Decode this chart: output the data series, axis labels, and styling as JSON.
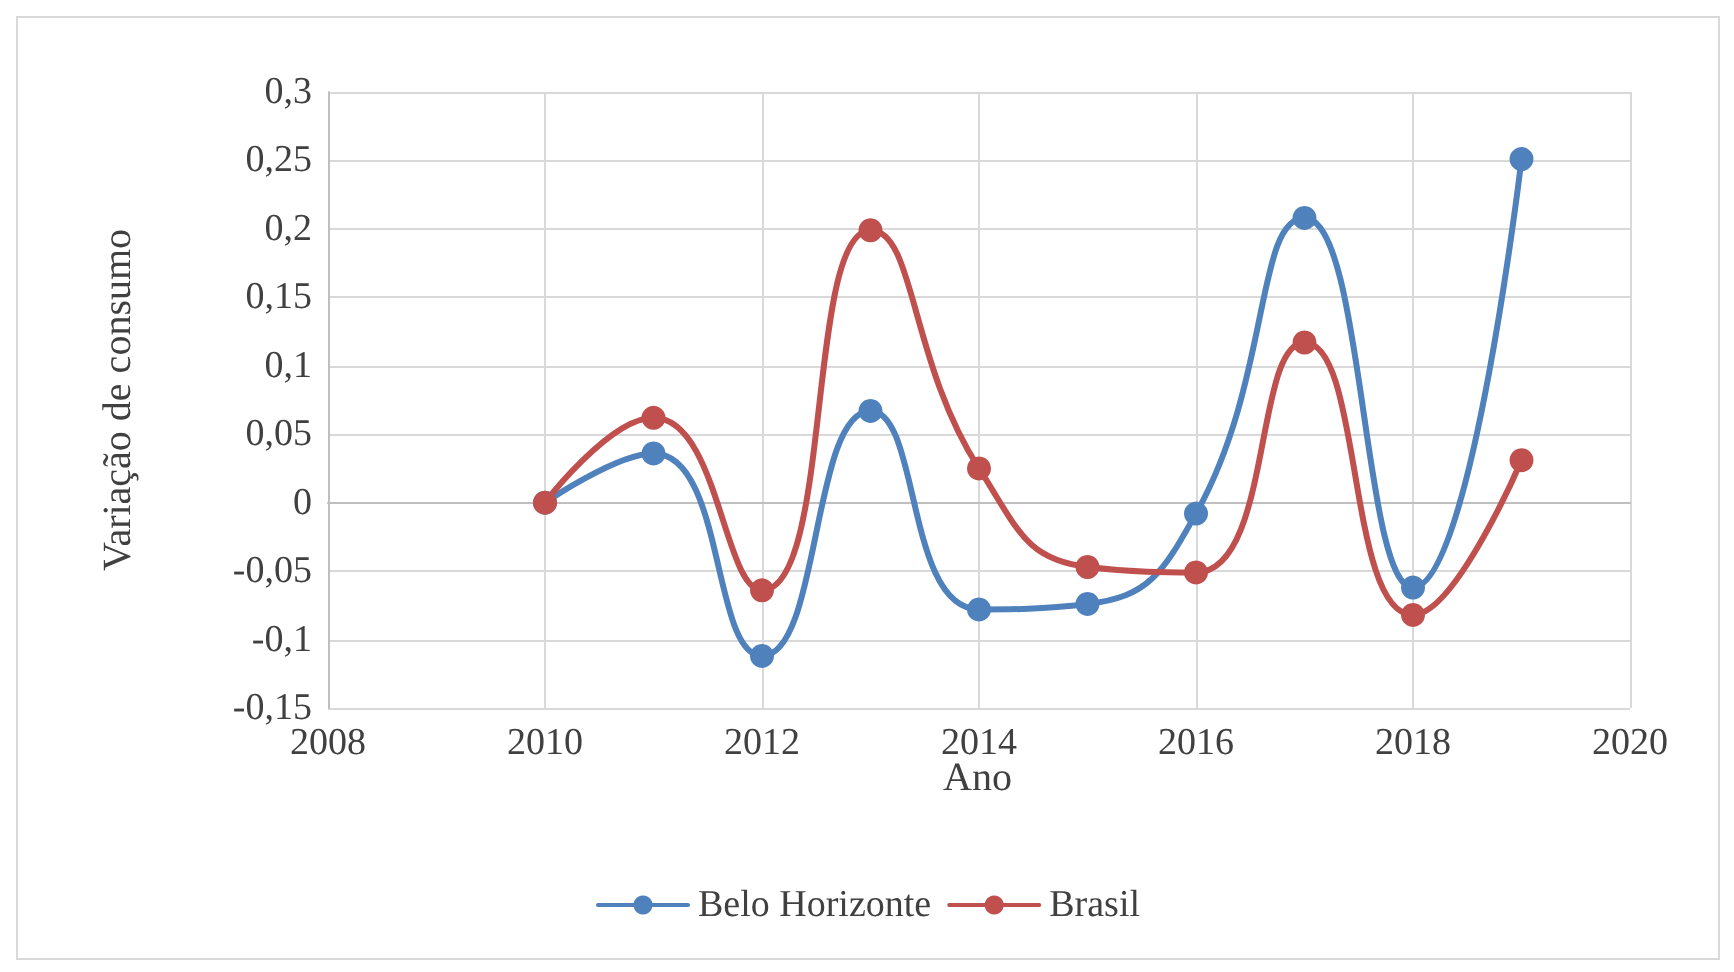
{
  "chart_data": {
    "type": "line",
    "xlabel": "Ano",
    "ylabel": "Variação de consumo",
    "x": [
      2010,
      2011,
      2012,
      2013,
      2014,
      2015,
      2016,
      2017,
      2018,
      2019
    ],
    "series": [
      {
        "name": "Belo Horizonte",
        "color": "#4f81bd",
        "values": [
          0,
          0.036,
          -0.112,
          0.067,
          -0.078,
          -0.074,
          -0.008,
          0.208,
          -0.062,
          0.251
        ]
      },
      {
        "name": "Brasil",
        "color": "#c0504d",
        "values": [
          0,
          0.062,
          -0.064,
          0.199,
          0.025,
          -0.047,
          -0.051,
          0.117,
          -0.082,
          0.031
        ]
      }
    ],
    "xlim": [
      2008,
      2020
    ],
    "xticks": [
      2008,
      2010,
      2012,
      2014,
      2016,
      2018,
      2020
    ],
    "ylim": [
      -0.15,
      0.3
    ],
    "yticks": [
      {
        "value": -0.15,
        "label": "-0,15"
      },
      {
        "value": -0.1,
        "label": "-0,1"
      },
      {
        "value": -0.05,
        "label": "-0,05"
      },
      {
        "value": 0,
        "label": "0"
      },
      {
        "value": 0.05,
        "label": "0,05"
      },
      {
        "value": 0.1,
        "label": "0,1"
      },
      {
        "value": 0.15,
        "label": "0,15"
      },
      {
        "value": 0.2,
        "label": "0,2"
      },
      {
        "value": 0.25,
        "label": "0,25"
      },
      {
        "value": 0.3,
        "label": "0,3"
      }
    ],
    "grid": true,
    "legend": "bottom",
    "marker": "circle",
    "line_style": "solid"
  }
}
